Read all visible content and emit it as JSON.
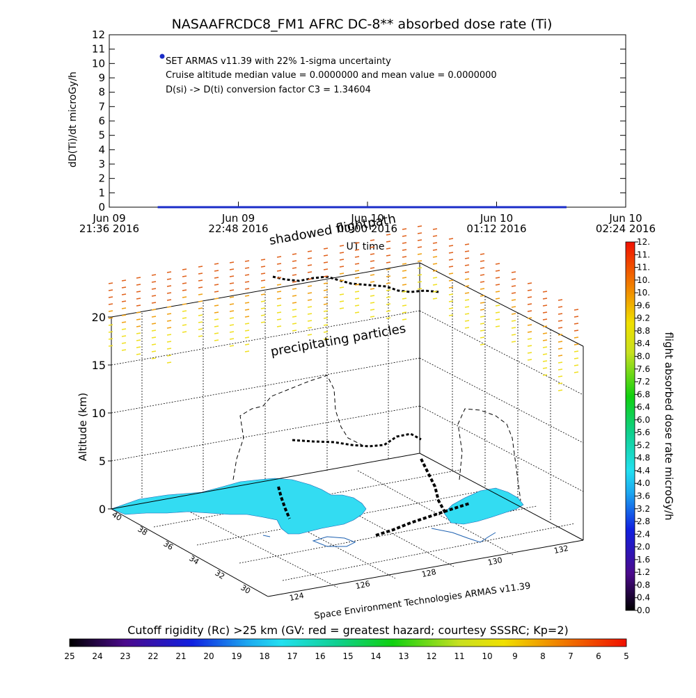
{
  "title": "NASAAFRCDC8_FM1 AFRC DC-8** absorbed dose rate (Ti)",
  "chart_data": [
    {
      "type": "line",
      "ylabel": "dD(Ti)/dt microGy/h",
      "xlabel": "UT time",
      "ylim": [
        0,
        12
      ],
      "yticks": [
        "0",
        "1",
        "2",
        "3",
        "4",
        "5",
        "6",
        "7",
        "8",
        "9",
        "10",
        "11",
        "12"
      ],
      "xticks": [
        {
          "line1": "Jun 09",
          "line2": "21:36 2016"
        },
        {
          "line1": "Jun 09",
          "line2": "22:48 2016"
        },
        {
          "line1": "Jun 10",
          "line2": "00:00 2016"
        },
        {
          "line1": "Jun 10",
          "line2": "01:12 2016"
        },
        {
          "line1": "Jun 10",
          "line2": "02:24 2016"
        }
      ],
      "xlim_minutes": [
        0,
        288
      ],
      "series": [
        {
          "name": "SET ARMAS v11.39 with 22% 1-sigma uncertainty",
          "x_minutes": [
            27,
            255
          ],
          "y": [
            0,
            0
          ],
          "color": "#1a2cc8"
        }
      ],
      "annotations": [
        "Cruise altitude median value = 0.0000000 and mean value = 0.0000000",
        "D(si) -> D(ti) conversion factor C3 = 1.34604"
      ]
    },
    {
      "type": "scatter",
      "zlabel": "Altitude (km)",
      "zticks": [
        "0",
        "5",
        "10",
        "15",
        "20"
      ],
      "lat_ticks": [
        "40",
        "38",
        "36",
        "34",
        "32",
        "30"
      ],
      "lon_ticks": [
        "124",
        "126",
        "128",
        "130",
        "132"
      ],
      "annotations": [
        "shadowed flightpath",
        "precipitating particles"
      ],
      "credit": "Space Environment Technologies ARMAS v11.39"
    }
  ],
  "colorbar_right": {
    "label": "flight absorbed dose rate microGy/h",
    "ticks": [
      "0.0",
      "0.4",
      "0.8",
      "1.2",
      "1.6",
      "2.0",
      "2.4",
      "2.8",
      "3.2",
      "3.6",
      "4.0",
      "4.4",
      "4.8",
      "5.2",
      "5.6",
      "6.0",
      "6.4",
      "6.8",
      "7.2",
      "7.6",
      "8.0",
      "8.4",
      "8.8",
      "9.2",
      "9.6",
      "10.",
      "10.",
      "11.",
      "11.",
      "12."
    ]
  },
  "colorbar_bottom": {
    "label": "Cutoff rigidity (Rc) >25 km (GV: red = greatest hazard; courtesy SSSRC; Kp=2)",
    "ticks": [
      "25",
      "24",
      "23",
      "22",
      "21",
      "20",
      "19",
      "18",
      "17",
      "16",
      "15",
      "14",
      "13",
      "12",
      "11",
      "10",
      "9",
      "8",
      "7",
      "6",
      "5"
    ]
  },
  "colors": {
    "land": "#33dcf2",
    "trace": "#1a2cc8",
    "coast": "#1b5fb0"
  }
}
